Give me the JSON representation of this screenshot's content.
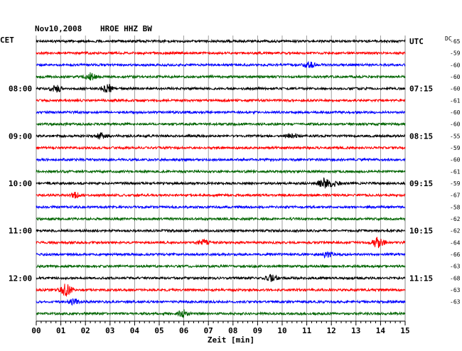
{
  "header": {
    "date": "Nov10,2008",
    "station": "HROE HHZ BW",
    "left_tz": "CET",
    "right_tz": "UTC",
    "dc_label": "DC"
  },
  "chart_data": {
    "type": "line",
    "title": "Nov10,2008   HROE HHZ BW",
    "xlabel": "Zeit [min]",
    "ylabel": "",
    "x_ticks": [
      "00",
      "01",
      "02",
      "03",
      "04",
      "05",
      "06",
      "07",
      "08",
      "09",
      "10",
      "11",
      "12",
      "13",
      "14",
      "15"
    ],
    "xlim": [
      0,
      15
    ],
    "grid": true,
    "trace_interval_min": 15,
    "trace_colors": [
      "#000000",
      "#ff0000",
      "#0000ff",
      "#006400"
    ],
    "left_time_labels": [
      {
        "trace": 4,
        "label": "08:00"
      },
      {
        "trace": 8,
        "label": "09:00"
      },
      {
        "trace": 12,
        "label": "10:00"
      },
      {
        "trace": 16,
        "label": "11:00"
      },
      {
        "trace": 20,
        "label": "12:00"
      }
    ],
    "right_time_labels": [
      {
        "trace": 0,
        "label": "UTC"
      },
      {
        "trace": 4,
        "label": "07:15"
      },
      {
        "trace": 8,
        "label": "08:15"
      },
      {
        "trace": 12,
        "label": "09:15"
      },
      {
        "trace": 16,
        "label": "10:15"
      },
      {
        "trace": 20,
        "label": "11:15"
      }
    ],
    "dc_offsets": [
      "-65",
      "-59",
      "-60",
      "-60",
      "-60",
      "-61",
      "-60",
      "-60",
      "-55",
      "-59",
      "-60",
      "-61",
      "-59",
      "-67",
      "-58",
      "-62",
      "-62",
      "-64",
      "-66",
      "-63",
      "-68",
      "-63",
      "-63"
    ],
    "events": [
      {
        "trace": 3,
        "minute": 2.2,
        "amp": 2.0
      },
      {
        "trace": 4,
        "minute": 0.8,
        "amp": 2.0
      },
      {
        "trace": 4,
        "minute": 2.9,
        "amp": 2.4
      },
      {
        "trace": 2,
        "minute": 11.1,
        "amp": 1.8
      },
      {
        "trace": 8,
        "minute": 2.6,
        "amp": 1.5
      },
      {
        "trace": 8,
        "minute": 10.4,
        "amp": 1.6
      },
      {
        "trace": 12,
        "minute": 11.7,
        "amp": 2.8
      },
      {
        "trace": 12,
        "minute": 12.1,
        "amp": 1.7
      },
      {
        "trace": 13,
        "minute": 1.6,
        "amp": 1.6
      },
      {
        "trace": 17,
        "minute": 6.8,
        "amp": 1.5
      },
      {
        "trace": 17,
        "minute": 13.9,
        "amp": 3.2
      },
      {
        "trace": 18,
        "minute": 11.8,
        "amp": 1.6
      },
      {
        "trace": 20,
        "minute": 9.6,
        "amp": 2.3
      },
      {
        "trace": 21,
        "minute": 1.2,
        "amp": 3.5
      },
      {
        "trace": 22,
        "minute": 1.5,
        "amp": 1.6
      },
      {
        "trace": 23,
        "minute": 6.0,
        "amp": 2.0
      }
    ]
  }
}
